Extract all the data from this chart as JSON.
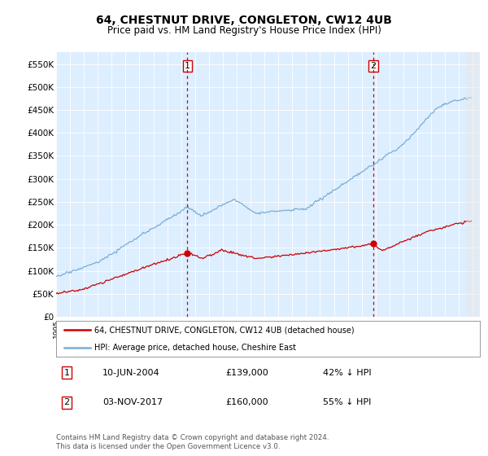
{
  "title": "64, CHESTNUT DRIVE, CONGLETON, CW12 4UB",
  "subtitle": "Price paid vs. HM Land Registry's House Price Index (HPI)",
  "title_fontsize": 10,
  "subtitle_fontsize": 8.5,
  "ylabel_ticks": [
    "£0",
    "£50K",
    "£100K",
    "£150K",
    "£200K",
    "£250K",
    "£300K",
    "£350K",
    "£400K",
    "£450K",
    "£500K",
    "£550K"
  ],
  "ytick_values": [
    0,
    50000,
    100000,
    150000,
    200000,
    250000,
    300000,
    350000,
    400000,
    450000,
    500000,
    550000
  ],
  "ylim": [
    0,
    575000
  ],
  "xlim_start": 1995.0,
  "xlim_end": 2025.5,
  "hpi_color": "#7aadd4",
  "price_color": "#cc0000",
  "transaction1_date": 2004.44,
  "transaction1_price": 139000,
  "transaction2_date": 2017.84,
  "transaction2_price": 160000,
  "legend_label_red": "64, CHESTNUT DRIVE, CONGLETON, CW12 4UB (detached house)",
  "legend_label_blue": "HPI: Average price, detached house, Cheshire East",
  "footer_text": "Contains HM Land Registry data © Crown copyright and database right 2024.\nThis data is licensed under the Open Government Licence v3.0.",
  "table_rows": [
    {
      "num": "1",
      "date": "10-JUN-2004",
      "price": "£139,000",
      "pct": "42% ↓ HPI"
    },
    {
      "num": "2",
      "date": "03-NOV-2017",
      "price": "£160,000",
      "pct": "55% ↓ HPI"
    }
  ],
  "background_color": "#ffffff",
  "plot_bg_color": "#ddeeff"
}
